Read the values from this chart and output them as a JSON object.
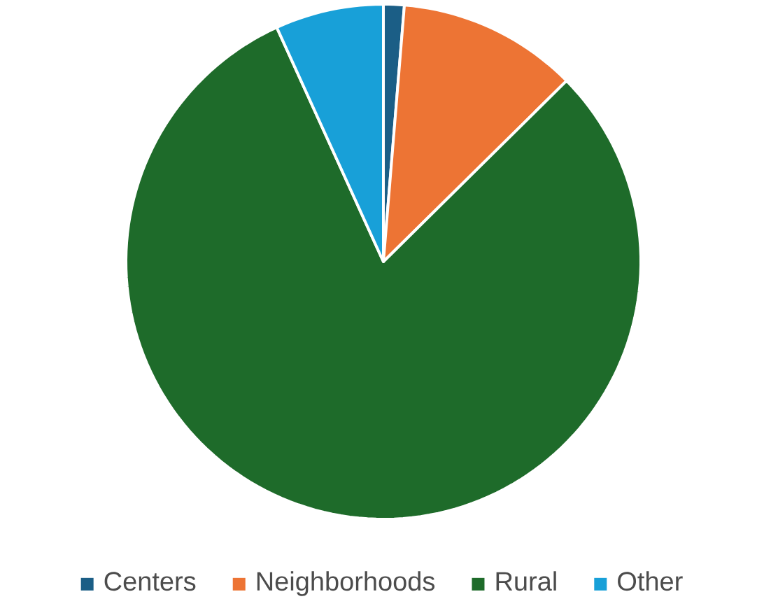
{
  "chart_data": {
    "type": "pie",
    "categories": [
      "Centers",
      "Neighborhoods",
      "Rural",
      "Other"
    ],
    "values": [
      1.3,
      11.3,
      80.6,
      6.8
    ],
    "colors": [
      "#1b5e86",
      "#ed7434",
      "#1e6b2a",
      "#18a0d8"
    ],
    "legend": "bottom"
  }
}
